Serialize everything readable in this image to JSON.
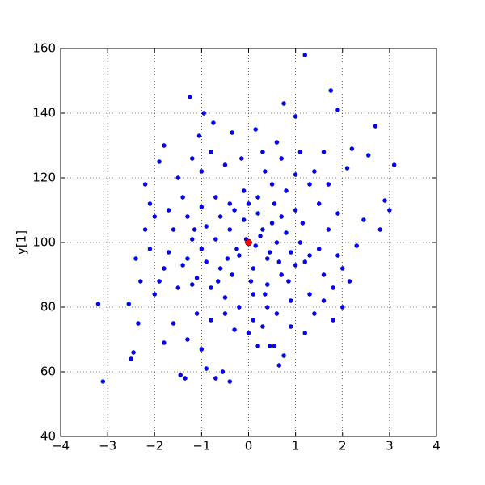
{
  "chart_data": {
    "type": "scatter",
    "ylabel": "y[1]",
    "xlim": [
      -4,
      4
    ],
    "ylim": [
      40,
      160
    ],
    "xticks": [
      {
        "value": -4,
        "label": "−4"
      },
      {
        "value": -3,
        "label": "−3"
      },
      {
        "value": -2,
        "label": "−2"
      },
      {
        "value": -1,
        "label": "−1"
      },
      0,
      1,
      2,
      3,
      4
    ],
    "yticks": [
      40,
      60,
      80,
      100,
      120,
      140,
      160
    ],
    "grid": true,
    "series": [
      {
        "color": "#0000ff",
        "x": [
          1.2,
          -3.2,
          -3.1,
          3.1,
          1.75,
          0.75,
          -1.25,
          -0.95,
          2.7,
          -2.5,
          2.8,
          2.9,
          1.9,
          2.55,
          -1.8,
          -2.4,
          0.65,
          -0.75,
          -1.05,
          0.15,
          3.0,
          2.2,
          -2.2,
          -2.45,
          -2.35,
          -2.55,
          -1.45,
          -1.35,
          -0.4,
          -0.7,
          -0.55,
          -0.9,
          0.2,
          0.45,
          0.55,
          0.75,
          1.2,
          1.8,
          2.0,
          2.15,
          2.3,
          2.45,
          2.1,
          1.6,
          1.0,
          0.7,
          0.3,
          -0.35,
          -0.5,
          -1.0,
          -1.5,
          -1.9,
          -2.0,
          -2.1,
          -2.2,
          -1.9,
          -1.8,
          -1.6,
          -1.3,
          -1.0,
          -0.3,
          0.1,
          0.4,
          0.9,
          1.3,
          1.6,
          1.9,
          1.7,
          1.5,
          1.3,
          1.0,
          0.8,
          0.5,
          0.2,
          -0.1,
          -0.4,
          -0.7,
          -1.0,
          -1.3,
          -1.6,
          -1.7,
          -1.4,
          -1.1,
          -0.8,
          -0.5,
          -0.2,
          0.1,
          0.4,
          0.7,
          1.0,
          1.3,
          1.1,
          0.8,
          0.5,
          0.2,
          -0.1,
          -0.4,
          -0.7,
          -1.0,
          -1.3,
          -1.2,
          -0.9,
          -0.6,
          -0.3,
          0.0,
          0.3,
          0.6,
          0.9,
          1.2,
          1.5,
          -0.2,
          0.1,
          0.4,
          0.7,
          1.0,
          -0.6,
          -0.9,
          -1.2,
          -1.5,
          -1.8,
          -2.0,
          -2.3,
          -1.1,
          -0.8,
          -0.5,
          0.0,
          0.3,
          0.6,
          0.9,
          1.4,
          1.6,
          1.8,
          2.0,
          1.9,
          1.7,
          1.4,
          1.1,
          0.6,
          0.35,
          -0.15,
          -0.8,
          -1.2,
          -1.4,
          -1.7,
          -2.1,
          -0.05,
          0.15,
          0.25,
          -0.25,
          0.45,
          0.55,
          -0.45,
          0.85,
          -0.65,
          1.15,
          -1.15,
          0.05,
          0.35,
          -0.35,
          0.65
        ],
        "values": [
          158,
          81,
          57,
          124,
          147,
          143,
          145,
          140,
          136,
          64,
          104,
          113,
          141,
          127,
          130,
          95,
          62,
          137,
          133,
          135,
          110,
          129,
          118,
          66,
          75,
          81,
          59,
          58,
          57,
          58,
          60,
          61,
          68,
          68,
          68,
          65,
          72,
          76,
          80,
          88,
          99,
          107,
          123,
          128,
          139,
          126,
          128,
          134,
          124,
          122,
          120,
          125,
          108,
          98,
          104,
          88,
          69,
          75,
          70,
          67,
          73,
          76,
          80,
          82,
          84,
          90,
          96,
          104,
          112,
          118,
          121,
          116,
          118,
          114,
          116,
          112,
          114,
          111,
          108,
          104,
          97,
          93,
          89,
          86,
          83,
          80,
          84,
          87,
          90,
          93,
          96,
          100,
          103,
          106,
          109,
          107,
          104,
          101,
          98,
          95,
          101,
          105,
          108,
          110,
          112,
          104,
          100,
          97,
          94,
          98,
          96,
          92,
          95,
          108,
          110,
          92,
          94,
          87,
          86,
          92,
          84,
          88,
          78,
          76,
          78,
          72,
          74,
          78,
          74,
          78,
          82,
          86,
          92,
          109,
          118,
          122,
          128,
          131,
          122,
          126,
          128,
          126,
          114,
          110,
          112,
          101,
          99,
          102,
          98,
          97,
          112,
          95,
          88,
          88,
          106,
          104,
          88,
          84,
          90,
          94
        ]
      },
      {
        "color": "#ff0000",
        "x": [
          0
        ],
        "values": [
          100
        ]
      }
    ]
  }
}
